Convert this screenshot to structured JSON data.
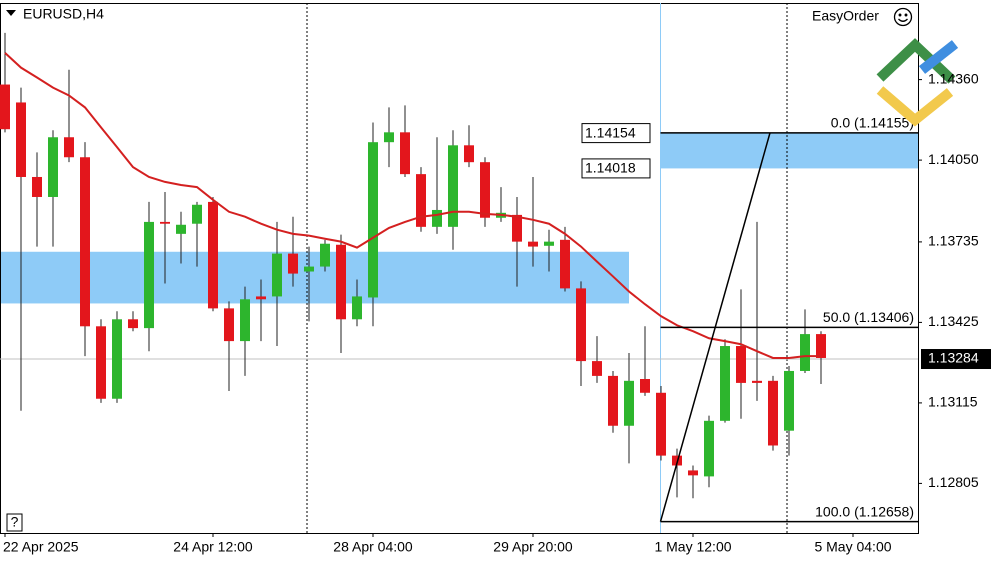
{
  "chart_data": {
    "type": "candlestick",
    "title": "EURUSD,H4",
    "panel_label": "EasyOrder",
    "help_label": "?",
    "categories": [
      "22 Apr 2025",
      null,
      null,
      null,
      null,
      null,
      null,
      null,
      null,
      null,
      null,
      null,
      null,
      "24 Apr 12:00",
      null,
      null,
      null,
      null,
      null,
      null,
      null,
      null,
      null,
      "28 Apr 04:00",
      null,
      null,
      null,
      null,
      null,
      null,
      null,
      null,
      null,
      "29 Apr 20:00",
      null,
      null,
      null,
      null,
      null,
      null,
      null,
      null,
      null,
      "1 May 12:00",
      null,
      null,
      null,
      null,
      null,
      null,
      null,
      null,
      null,
      "5 May 04:00"
    ],
    "open": [
      1.14341,
      1.14272,
      1.13985,
      1.13908,
      1.14138,
      1.14061,
      1.1341,
      1.13131,
      1.13437,
      1.13403,
      1.13812,
      1.13766,
      1.13805,
      1.13889,
      1.13479,
      1.13353,
      1.13525,
      1.13525,
      1.1369,
      1.13621,
      1.1364,
      1.13724,
      1.13437,
      1.13521,
      1.14119,
      1.14157,
      1.13996,
      1.13793,
      1.13793,
      1.14107,
      1.14042,
      1.13828,
      1.13839,
      1.13736,
      1.1372,
      1.13743,
      1.13556,
      1.13276,
      1.13219,
      1.13027,
      1.13207,
      1.13154,
      1.12912,
      1.12855,
      1.12832,
      1.13046,
      1.13334,
      1.132,
      1.132,
      1.13008,
      1.13238,
      1.1338,
      null,
      null
    ],
    "high": [
      1.1454,
      1.14329,
      1.1408,
      1.14165,
      1.14398,
      1.14119,
      1.13437,
      1.13468,
      1.13468,
      1.13889,
      1.13927,
      1.13851,
      1.13889,
      1.13908,
      1.13506,
      1.13563,
      1.1359,
      1.13812,
      1.13832,
      1.13717,
      1.13743,
      1.13763,
      1.1359,
      1.14195,
      1.14253,
      1.14261,
      1.14023,
      1.14138,
      1.14165,
      1.14184,
      1.14061,
      1.13946,
      1.13908,
      1.13985,
      1.13782,
      1.13793,
      1.13583,
      1.13372,
      1.13238,
      1.13307,
      1.1341,
      1.1318,
      1.12939,
      1.12874,
      1.13066,
      1.1336,
      1.13552,
      1.13812,
      1.13219,
      1.13257,
      1.13475,
      1.13391,
      null,
      null
    ],
    "low": [
      1.14157,
      1.13085,
      1.13717,
      1.13717,
      1.14042,
      1.13295,
      1.13115,
      1.13115,
      1.13391,
      1.13314,
      1.13575,
      1.13652,
      1.1364,
      1.13468,
      1.13161,
      1.13219,
      1.13353,
      1.13334,
      1.13563,
      1.13429,
      1.13621,
      1.13307,
      1.1341,
      1.1341,
      1.14023,
      1.13985,
      1.13774,
      1.13766,
      1.13705,
      1.14023,
      1.13793,
      1.13812,
      1.13563,
      1.1364,
      1.13621,
      1.13544,
      1.1318,
      1.13192,
      1.13,
      1.12882,
      1.13142,
      1.12893,
      1.12751,
      1.12748,
      1.1279,
      1.13039,
      1.13054,
      1.13123,
      1.12931,
      1.12912,
      1.1323,
      1.13188,
      null,
      null
    ],
    "close": [
      1.14169,
      1.13985,
      1.13908,
      1.14138,
      1.14061,
      1.1341,
      1.13131,
      1.13437,
      1.13403,
      1.13812,
      1.13805,
      1.13801,
      1.13878,
      1.13479,
      1.13353,
      1.13514,
      1.13514,
      1.1369,
      1.13613,
      1.1364,
      1.13728,
      1.13437,
      1.13525,
      1.14119,
      1.14157,
      1.13996,
      1.13793,
      1.13858,
      1.14107,
      1.14042,
      1.13828,
      1.13847,
      1.13736,
      1.13717,
      1.13736,
      1.13556,
      1.13276,
      1.13219,
      1.13027,
      1.132,
      1.13154,
      1.12912,
      1.12874,
      1.12836,
      1.13046,
      1.13334,
      1.13192,
      1.13192,
      1.12951,
      1.13238,
      1.1338,
      1.13288,
      null,
      null
    ],
    "up_color": "#2db52d",
    "down_color": "#e3161c",
    "wick_color": "#222222",
    "ma": {
      "color": "#d42020",
      "values": [
        1.14463,
        1.14406,
        1.14368,
        1.14329,
        1.14299,
        1.14253,
        1.14176,
        1.141,
        1.14023,
        1.13985,
        1.13966,
        1.13954,
        1.13946,
        1.13897,
        1.13851,
        1.13832,
        1.13805,
        1.13782,
        1.13766,
        1.13759,
        1.13747,
        1.13736,
        1.13713,
        1.13751,
        1.13789,
        1.13812,
        1.13832,
        1.13839,
        1.13851,
        1.13851,
        1.13843,
        1.13839,
        1.13832,
        1.1382,
        1.13805,
        1.13766,
        1.13717,
        1.13659,
        1.13602,
        1.13544,
        1.13495,
        1.13449,
        1.13414,
        1.13391,
        1.13364,
        1.13353,
        1.13341,
        1.13314,
        1.13288,
        1.13288,
        1.13295,
        1.13295,
        null,
        null
      ]
    },
    "zones": [
      {
        "high": 1.13697,
        "low": 1.13498,
        "start_index": 0,
        "end_index": 39,
        "color": "#8ecbf7",
        "labeled": false
      },
      {
        "high": 1.14154,
        "low": 1.14018,
        "start_index": 41,
        "color": "#8ecbf7",
        "labeled": true
      }
    ],
    "fib": {
      "start_index": 41,
      "end_index": 48,
      "levels": [
        {
          "label": "0.0 (1.14155)",
          "price": 1.14155
        },
        {
          "label": "50.0 (1.13406)",
          "price": 1.13406
        },
        {
          "label": "100.0 (1.12658)",
          "price": 1.12658
        }
      ]
    },
    "current_price": 1.13284,
    "ylim": [
      1.12614,
      1.14655
    ],
    "yticks": [
      {
        "value": 1.1436,
        "label": "1.14360"
      },
      {
        "value": 1.1405,
        "label": "1.14050"
      },
      1.13735,
      1.13425,
      1.13115,
      1.12805
    ],
    "separators": [
      19,
      49
    ]
  }
}
